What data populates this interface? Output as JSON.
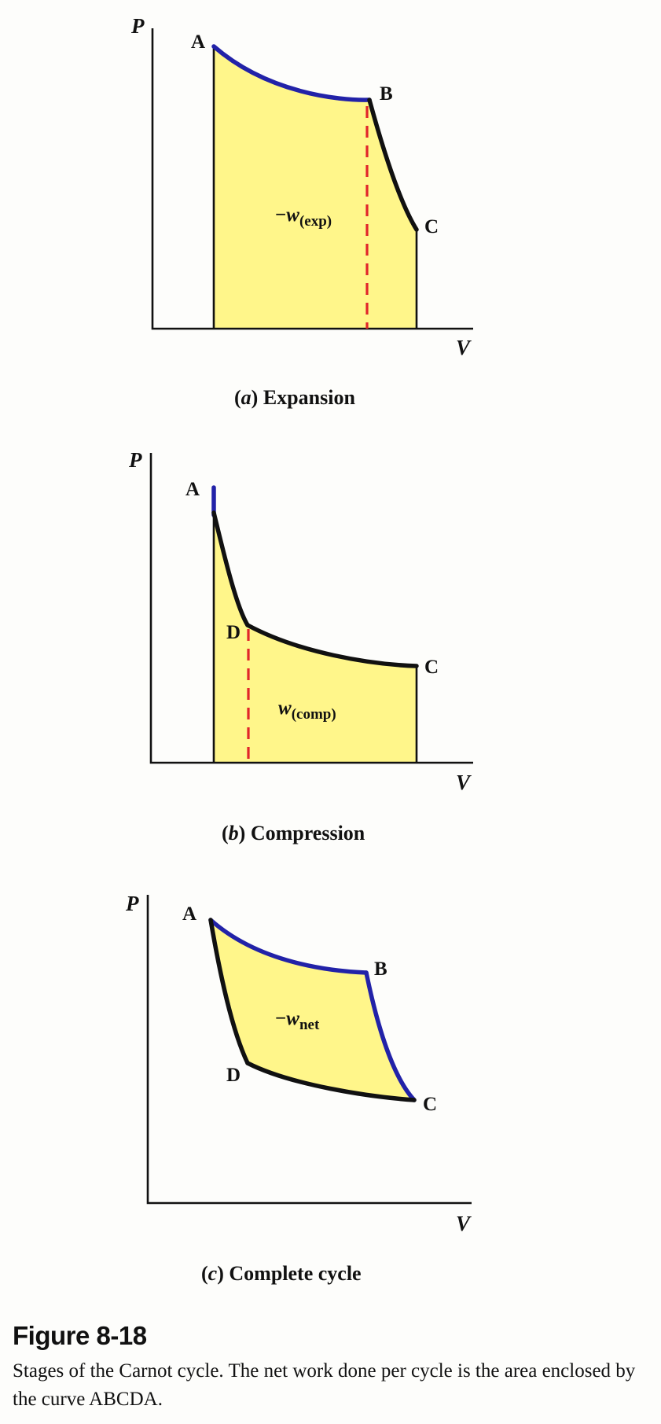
{
  "figure": {
    "title": "Figure 8-18",
    "caption": "Stages of the Carnot cycle. The net work done per cycle is the area enclosed by the curve ABCDA."
  },
  "colors": {
    "fill": "#fff68a",
    "isotherm_and_adiabat_expansion": "#2222a8",
    "compression_curve": "#111111",
    "dashed_divider": "#e1252a"
  },
  "axes": {
    "y_label": "P",
    "x_label": "V"
  },
  "panels": [
    {
      "letter": "a",
      "name": "Expansion",
      "points": [
        "A",
        "B",
        "C"
      ],
      "work": {
        "sign": "−",
        "symbol": "w",
        "subscript": "(exp)"
      }
    },
    {
      "letter": "b",
      "name": "Compression",
      "points": [
        "A",
        "D",
        "C"
      ],
      "work": {
        "sign": "",
        "symbol": "w",
        "subscript": "(comp)"
      }
    },
    {
      "letter": "c",
      "name": "Complete cycle",
      "points": [
        "A",
        "B",
        "C",
        "D"
      ],
      "work": {
        "sign": "−",
        "symbol": "w",
        "subscript": "net"
      }
    }
  ]
}
